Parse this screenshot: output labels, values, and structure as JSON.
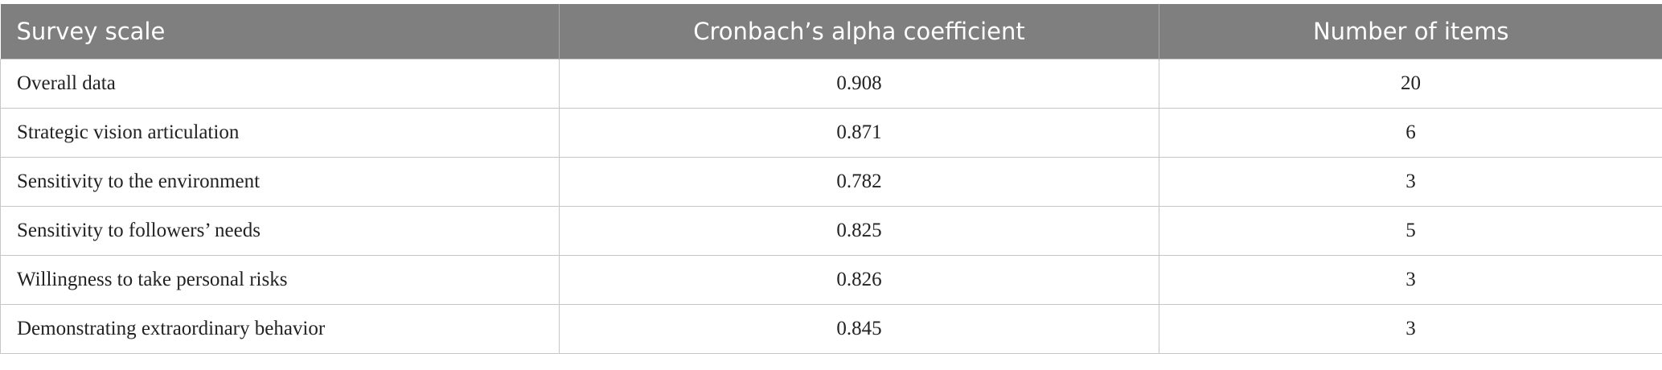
{
  "table": {
    "header": [
      "Survey scale",
      "Cronbach’s alpha coefficient",
      "Number of items"
    ],
    "rows": [
      [
        "Overall data",
        "0.908",
        "20"
      ],
      [
        "Strategic vision articulation",
        "0.871",
        "6"
      ],
      [
        "Sensitivity to the environment",
        "0.782",
        "3"
      ],
      [
        "Sensitivity to followers’ needs",
        "0.825",
        "5"
      ],
      [
        "Willingness to take personal risks",
        "0.826",
        "3"
      ],
      [
        "Demonstrating extraordinary behavior",
        "0.845",
        "3"
      ]
    ]
  }
}
